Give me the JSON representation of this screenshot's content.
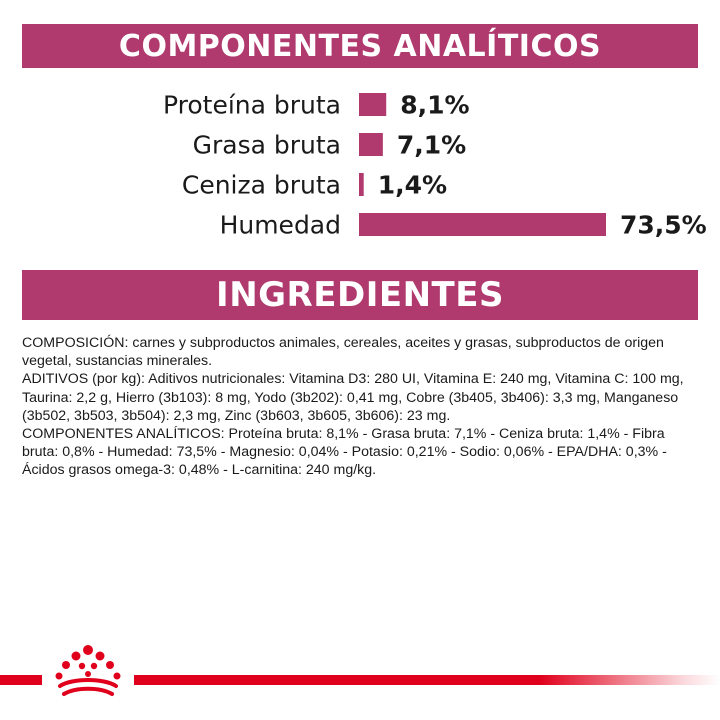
{
  "headers": {
    "components": "COMPONENTES ANALÍTICOS",
    "ingredients": "INGREDIENTES"
  },
  "chart_data": {
    "type": "bar",
    "orientation": "horizontal",
    "categories": [
      "Proteína bruta",
      "Grasa bruta",
      "Ceniza bruta",
      "Humedad"
    ],
    "values": [
      8.1,
      7.1,
      1.4,
      73.5
    ],
    "value_labels": [
      "8,1%",
      "7,1%",
      "1,4%",
      "73,5%"
    ],
    "unit": "%",
    "title": "COMPONENTES ANALÍTICOS",
    "xlabel": "",
    "ylabel": "",
    "xlim": [
      0,
      73.5
    ],
    "grid": false,
    "bar_color": "#b03a6e"
  },
  "ingredients": {
    "composition": "COMPOSICIÓN: carnes y subproductos animales, cereales, aceites y grasas, subproductos de origen vegetal, sustancias minerales.",
    "additives": "ADITIVOS (por kg): Aditivos nutricionales: Vitamina D3: 280 UI, Vitamina E: 240 mg, Vitamina C: 100 mg, Taurina: 2,2 g, Hierro (3b103): 8 mg, Yodo (3b202): 0,41 mg, Cobre (3b405, 3b406): 3,3 mg, Manganeso (3b502, 3b503, 3b504): 2,3 mg, Zinc (3b603, 3b605, 3b606): 23 mg.",
    "analytical": "COMPONENTES ANALÍTICOS: Proteína bruta: 8,1% - Grasa bruta: 7,1% - Ceniza bruta: 1,4% - Fibra bruta: 0,8% - Humedad: 73,5% - Magnesio: 0,04% - Potasio: 0,21% - Sodio: 0,06% - EPA/DHA: 0,3% - Ácidos grasos omega-3: 0,48% - L-carnitina: 240 mg/kg."
  },
  "footer": {
    "logo_icon": "crown-icon",
    "brand_color": "#e0001b"
  }
}
